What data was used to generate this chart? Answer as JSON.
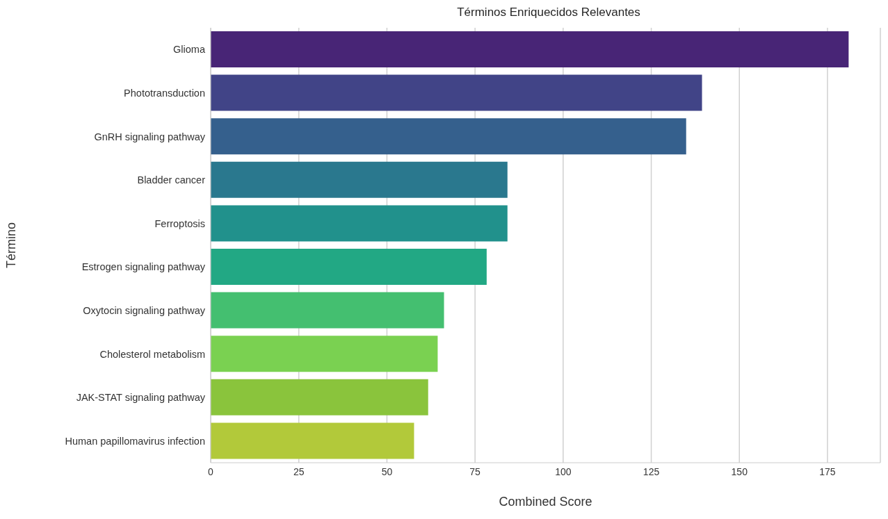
{
  "chart_data": {
    "type": "bar",
    "orientation": "horizontal",
    "title": "Términos Enriquecidos Relevantes",
    "xlabel": "Combined Score",
    "ylabel": "Término",
    "categories": [
      "Glioma",
      "Phototransduction",
      "GnRH signaling pathway",
      "Bladder cancer",
      "Ferroptosis",
      "Estrogen signaling pathway",
      "Oxytocin signaling pathway",
      "Cholesterol metabolism",
      "JAK-STAT signaling pathway",
      "Human papillomavirus infection"
    ],
    "values": [
      181,
      139.4,
      134.9,
      84.2,
      84.2,
      78.3,
      66.2,
      64.4,
      61.7,
      57.7
    ],
    "colors": [
      "#482576",
      "#414487",
      "#35608d",
      "#2a788e",
      "#21918c",
      "#22a884",
      "#44bf70",
      "#7ad151",
      "#8ac43c",
      "#b2c93a"
    ],
    "xlim": [
      0,
      190
    ],
    "xticks": [
      0,
      25,
      50,
      75,
      100,
      125,
      150,
      175
    ],
    "grid": "x"
  }
}
